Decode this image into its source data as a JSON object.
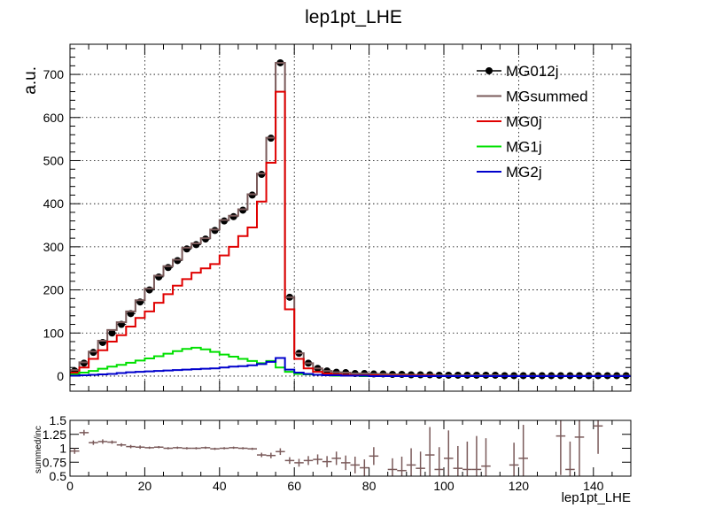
{
  "title": "lep1pt_LHE",
  "chart_data": [
    {
      "type": "line",
      "title": "lep1pt_LHE",
      "xlabel": "",
      "ylabel": "a.u.",
      "xlim": [
        0,
        150
      ],
      "ylim": [
        -35,
        770
      ],
      "xticks": [
        0,
        20,
        40,
        60,
        80,
        100,
        120,
        140
      ],
      "yticks": [
        0,
        100,
        200,
        300,
        400,
        500,
        600,
        700
      ],
      "grid": true,
      "legend": "top-right",
      "bin_width": 2.5,
      "x": [
        1.25,
        3.75,
        6.25,
        8.75,
        11.25,
        13.75,
        16.25,
        18.75,
        21.25,
        23.75,
        26.25,
        28.75,
        31.25,
        33.75,
        36.25,
        38.75,
        41.25,
        43.75,
        46.25,
        48.75,
        51.25,
        53.75,
        56.25,
        58.75,
        61.25,
        63.75,
        66.25,
        68.75,
        71.25,
        73.75,
        76.25,
        78.75,
        81.25,
        83.75,
        86.25,
        88.75,
        91.25,
        93.75,
        96.25,
        98.75,
        101.25,
        103.75,
        106.25,
        108.75,
        111.25,
        113.75,
        116.25,
        118.75,
        121.25,
        123.75,
        126.25,
        128.75,
        131.25,
        133.75,
        136.25,
        138.75,
        141.25,
        143.75,
        146.25,
        148.75
      ],
      "series": [
        {
          "name": "MG012j",
          "color": "#000000",
          "style": "markers",
          "values": [
            12,
            30,
            55,
            78,
            100,
            120,
            145,
            172,
            200,
            230,
            252,
            268,
            295,
            305,
            318,
            338,
            360,
            370,
            385,
            420,
            468,
            552,
            727,
            183,
            53,
            30,
            18,
            12,
            9,
            8,
            6,
            6,
            5,
            5,
            4,
            4,
            3,
            3,
            3,
            2,
            2,
            2,
            2,
            2,
            2,
            2,
            1,
            1,
            1,
            1,
            1,
            1,
            1,
            1,
            1,
            1,
            1,
            1,
            1,
            1
          ]
        },
        {
          "name": "MGsummed",
          "color": "#7a5a5a",
          "style": "step",
          "values": [
            14,
            32,
            57,
            82,
            107,
            125,
            150,
            176,
            203,
            233,
            255,
            270,
            298,
            308,
            320,
            340,
            362,
            372,
            387,
            422,
            470,
            553,
            727,
            183,
            53,
            30,
            18,
            12,
            9,
            8,
            6,
            6,
            5,
            5,
            4,
            4,
            3,
            3,
            3,
            2,
            2,
            2,
            2,
            2,
            2,
            2,
            1,
            1,
            1,
            1,
            1,
            1,
            1,
            1,
            1,
            1,
            1,
            1,
            1,
            1
          ]
        },
        {
          "name": "MG0j",
          "color": "#e00000",
          "style": "step",
          "values": [
            8,
            20,
            40,
            60,
            80,
            95,
            115,
            135,
            150,
            170,
            190,
            210,
            225,
            240,
            250,
            260,
            280,
            300,
            325,
            345,
            405,
            495,
            660,
            155,
            40,
            18,
            10,
            6,
            4,
            3,
            2,
            2,
            2,
            1,
            1,
            1,
            1,
            1,
            1,
            0,
            0,
            0,
            0,
            0,
            0,
            0,
            0,
            0,
            0,
            0,
            0,
            0,
            0,
            0,
            0,
            0,
            0,
            0,
            0,
            0
          ]
        },
        {
          "name": "MG1j",
          "color": "#00e000",
          "style": "step",
          "values": [
            4,
            8,
            12,
            17,
            22,
            26,
            31,
            36,
            41,
            46,
            52,
            58,
            63,
            66,
            62,
            56,
            50,
            45,
            40,
            35,
            30,
            35,
            20,
            10,
            5,
            4,
            3,
            2,
            1,
            1,
            1,
            0,
            0,
            0,
            0,
            0,
            0,
            0,
            0,
            0,
            0,
            0,
            0,
            0,
            0,
            0,
            0,
            0,
            0,
            0,
            0,
            0,
            0,
            0,
            0,
            0,
            0,
            0,
            0,
            0
          ]
        },
        {
          "name": "MG2j",
          "color": "#0000cc",
          "style": "step",
          "values": [
            1,
            2,
            3,
            4,
            5,
            7,
            9,
            10,
            11,
            12,
            13,
            14,
            15,
            16,
            17,
            18,
            20,
            22,
            23,
            25,
            28,
            33,
            42,
            15,
            8,
            5,
            3,
            2,
            2,
            1,
            1,
            1,
            0,
            0,
            0,
            0,
            0,
            0,
            0,
            0,
            0,
            0,
            0,
            0,
            0,
            0,
            0,
            0,
            0,
            0,
            0,
            0,
            0,
            0,
            0,
            0,
            0,
            0,
            0,
            0
          ]
        }
      ]
    },
    {
      "type": "scatter",
      "title": "",
      "xlabel": "lep1pt_LHE",
      "ylabel": "summed/inc",
      "xlim": [
        0,
        150
      ],
      "ylim": [
        0.5,
        1.5
      ],
      "xticks": [
        0,
        20,
        40,
        60,
        80,
        100,
        120,
        140
      ],
      "yticks": [
        0.5,
        0.75,
        1,
        1.25,
        1.5
      ],
      "ytick_labels": [
        "0.5",
        "0.75",
        "1",
        "1.25",
        "1.5"
      ],
      "grid": false,
      "series": [
        {
          "name": "",
          "color": "#7a5a5a",
          "x": [
            1.25,
            3.75,
            6.25,
            8.75,
            11.25,
            13.75,
            16.25,
            18.75,
            21.25,
            23.75,
            26.25,
            28.75,
            31.25,
            33.75,
            36.25,
            38.75,
            41.25,
            43.75,
            46.25,
            48.75,
            51.25,
            53.75,
            56.25,
            58.75,
            61.25,
            63.75,
            66.25,
            68.75,
            71.25,
            73.75,
            76.25,
            78.75,
            81.25,
            86.25,
            88.75,
            91.25,
            93.75,
            96.25,
            98.75,
            101.25,
            103.75,
            106.25,
            108.75,
            111.25,
            118.75,
            121.25,
            131.25,
            133.75,
            136.25,
            141.25
          ],
          "values": [
            0.95,
            1.28,
            1.1,
            1.12,
            1.11,
            1.06,
            1.03,
            1.02,
            1.01,
            1.02,
            1.0,
            1.01,
            1.0,
            1.0,
            1.01,
            0.99,
            1.0,
            1.01,
            1.0,
            0.99,
            0.88,
            0.87,
            0.94,
            0.78,
            0.74,
            0.78,
            0.8,
            0.76,
            0.82,
            0.74,
            0.7,
            0.65,
            0.86,
            0.62,
            0.6,
            0.7,
            0.64,
            0.88,
            0.62,
            0.82,
            0.64,
            0.62,
            0.62,
            0.68,
            0.7,
            0.82,
            1.22,
            0.62,
            1.2,
            1.4
          ],
          "errors": [
            0.05,
            0.05,
            0.04,
            0.04,
            0.03,
            0.03,
            0.03,
            0.03,
            0.02,
            0.02,
            0.02,
            0.02,
            0.02,
            0.02,
            0.02,
            0.02,
            0.02,
            0.02,
            0.02,
            0.02,
            0.04,
            0.05,
            0.06,
            0.06,
            0.07,
            0.08,
            0.09,
            0.1,
            0.12,
            0.13,
            0.15,
            0.15,
            0.16,
            0.2,
            0.25,
            0.3,
            0.3,
            0.5,
            0.4,
            0.5,
            0.4,
            0.5,
            0.6,
            0.5,
            0.4,
            0.6,
            0.7,
            0.5,
            0.7,
            0.5
          ]
        }
      ]
    }
  ]
}
